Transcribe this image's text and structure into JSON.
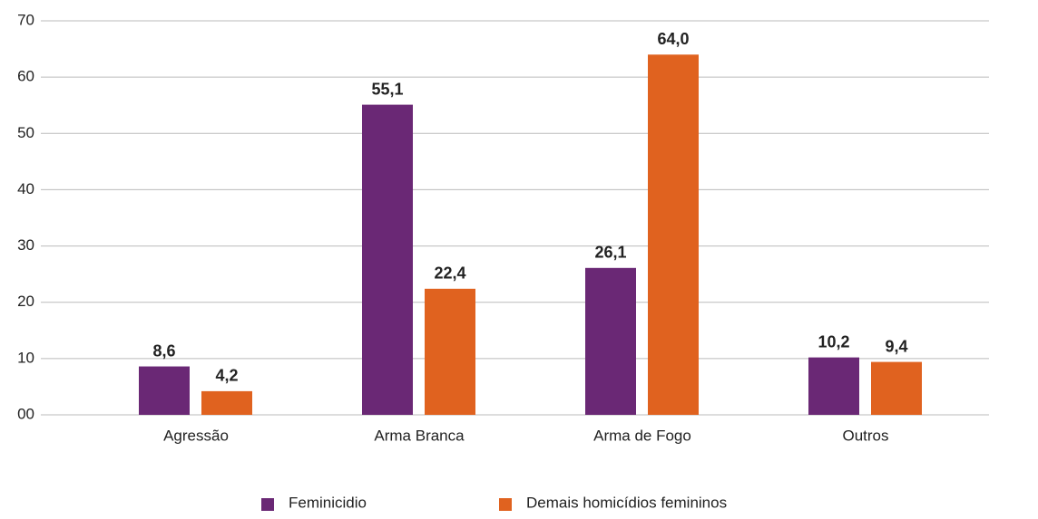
{
  "chart_data": {
    "type": "bar",
    "categories": [
      "Agressão",
      "Arma Branca",
      "Arma de Fogo",
      "Outros"
    ],
    "series": [
      {
        "name": "Feminicidio",
        "color": "#6a2875",
        "values": [
          8.6,
          55.1,
          26.1,
          10.2
        ],
        "value_labels": [
          "8,6",
          "55,1",
          "26,1",
          "10,2"
        ]
      },
      {
        "name": "Demais homicídios femininos",
        "color": "#e0621f",
        "values": [
          4.2,
          22.4,
          64.0,
          9.4
        ],
        "value_labels": [
          "4,2",
          "22,4",
          "64,0",
          "9,4"
        ]
      }
    ],
    "ylim": [
      0,
      70
    ],
    "yticks": [
      {
        "value": 0,
        "label": "00"
      },
      10,
      20,
      30,
      40,
      50,
      60,
      70
    ],
    "grid": true
  }
}
